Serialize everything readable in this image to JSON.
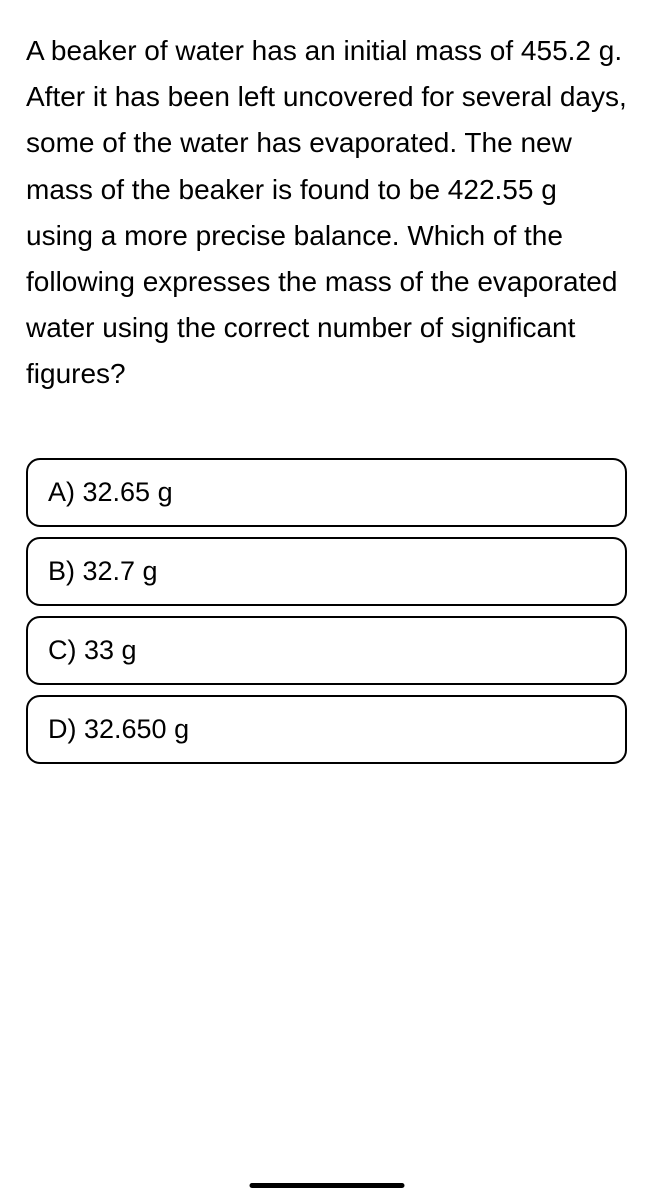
{
  "question": {
    "text": "A beaker of water has an initial mass of 455.2 g. After it has been left uncovered for several days, some of the water has evaporated. The new mass of the beaker is found to be 422.55 g using a more precise balance. Which of the following expresses the mass of the evaporated water using the correct number of significant figures?"
  },
  "options": [
    {
      "label": "A) 32.65 g"
    },
    {
      "label": "B) 32.7 g"
    },
    {
      "label": "C) 33 g"
    },
    {
      "label": "D) 32.650 g"
    }
  ],
  "styling": {
    "background_color": "#ffffff",
    "text_color": "#000000",
    "border_color": "#000000",
    "question_fontsize": 28,
    "option_fontsize": 27,
    "border_radius": 14,
    "border_width": 2.5
  }
}
